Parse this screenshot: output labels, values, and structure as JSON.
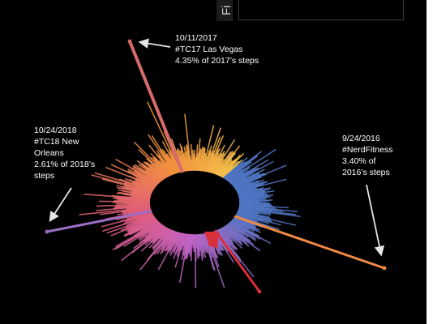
{
  "filter_tab_label": "Fi",
  "colors": {
    "background": "#000000",
    "annotation_text": "#ffffff",
    "arrow": "#e6e6e6",
    "gradient_start": "#f4c04a",
    "gradient_mid_1": "#f3923f",
    "gradient_mid_2": "#e15c7a",
    "gradient_mid_3": "#c063c7",
    "gradient_end": "#4f76c2",
    "highlight_red": "#d9303b"
  },
  "chart_data": {
    "type": "radial-bar",
    "description_of_axis": "Daily steps arranged radially by date; bar length proportional to daily steps",
    "highlights": [
      {
        "date": "10/11/2017",
        "lines": [
          "10/11/2017",
          "#TC17 Las Vegas",
          "4.35% of 2017’s steps"
        ],
        "share_of_year_pct": 4.35
      },
      {
        "date": "10/24/2018",
        "lines": [
          "10/24/2018",
          "#TC18 New",
          "Orleans",
          "2.61% of 2018’s",
          "steps"
        ],
        "share_of_year_pct": 2.61
      },
      {
        "date": "9/24/2016",
        "lines": [
          "9/24/2016",
          "#NerdFitness",
          "3.40% of",
          "2016’s steps"
        ],
        "share_of_year_pct": 3.4
      }
    ]
  }
}
